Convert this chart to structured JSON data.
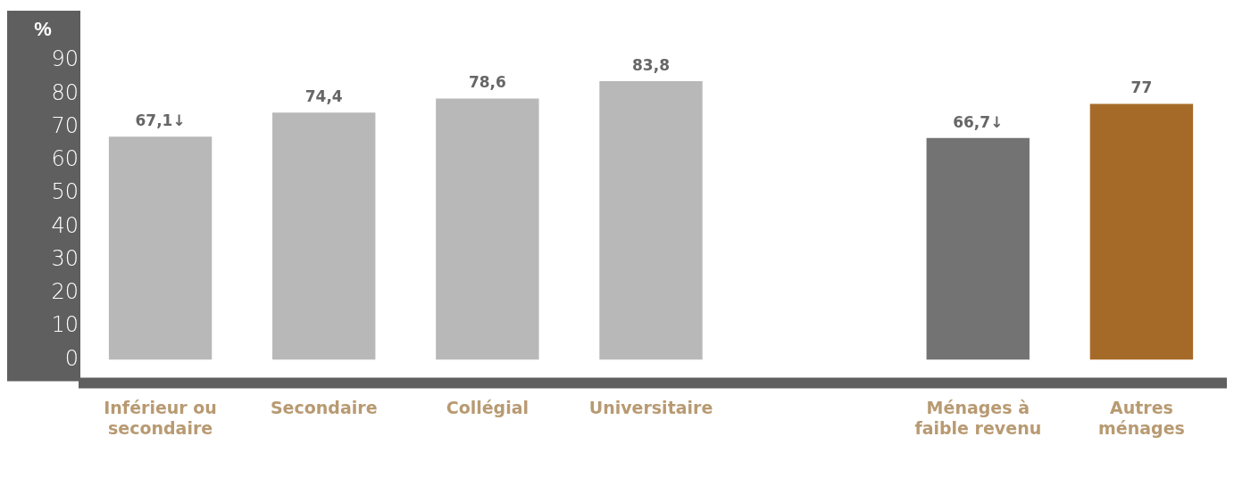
{
  "chart_data": {
    "type": "bar",
    "ylabel": "%",
    "categories": [
      "Inférieur ou secondaire",
      "Secondaire",
      "Collégial",
      "Universitaire",
      null,
      "Ménages à faible revenu",
      "Autres ménages"
    ],
    "values": [
      67.1,
      74.4,
      78.6,
      83.8,
      null,
      66.7,
      77
    ],
    "colors": [
      "#b8b8b8",
      "#b8b8b8",
      "#b8b8b8",
      "#b8b8b8",
      "#b8b8b8",
      "#737373",
      "#a66a28"
    ],
    "value_labels": [
      "67,1↓",
      "74,4",
      "78,6",
      "83,8",
      null,
      "66,7↓",
      "77"
    ],
    "ylim": [
      0,
      90
    ],
    "yticks": [
      0,
      10,
      20,
      30,
      40,
      50,
      60,
      70,
      80,
      90
    ],
    "grid": false,
    "legend": false
  }
}
